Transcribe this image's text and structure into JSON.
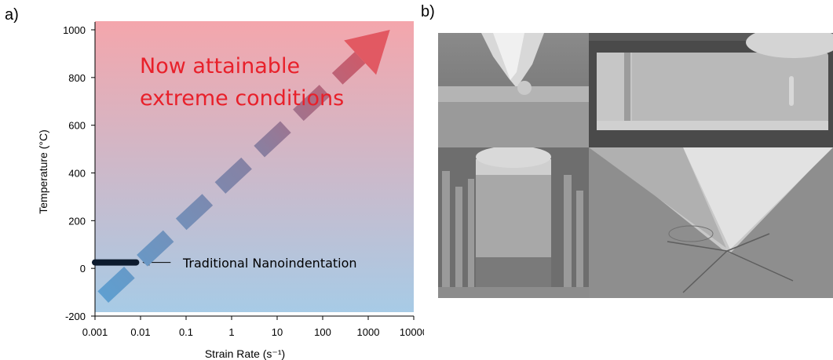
{
  "panel_labels": {
    "a": "a)",
    "b": "b)"
  },
  "chart_data": {
    "type": "line",
    "x_scale": "log",
    "xlabel": "Strain Rate (s⁻¹)",
    "ylabel": "Temperature (°C)",
    "xlim": [
      0.001,
      10000
    ],
    "ylim": [
      -200,
      1000
    ],
    "x_tick_labels": [
      "0.001",
      "0.01",
      "0.1",
      "1",
      "10",
      "100",
      "1000",
      "10000"
    ],
    "y_tick_labels": [
      "-200",
      "0",
      "200",
      "400",
      "600",
      "800",
      "1000"
    ],
    "grid": false,
    "background_gradient": {
      "top": "#f4a6ac",
      "bottom": "#a7cbe6"
    },
    "series": [
      {
        "name": "Traditional Nanoindentation",
        "style": "solid",
        "color": "#0d1b2e",
        "x": [
          0.001,
          0.008
        ],
        "y": [
          25,
          25
        ]
      },
      {
        "style": "dashed-arrow",
        "color_start": "#5f9fd0",
        "color_end": "#e0505a",
        "x": [
          0.0015,
          3000
        ],
        "y": [
          -120,
          1000
        ]
      }
    ],
    "annotations": [
      {
        "text": "Now attainable",
        "color": "#e8202a"
      },
      {
        "text": "extreme conditions",
        "color": "#e8202a"
      },
      {
        "text": "Traditional Nanoindentation",
        "color": "#000000"
      }
    ]
  },
  "images": [
    {
      "name": "sem-indenter-tip"
    },
    {
      "name": "sem-cantilever-beam"
    },
    {
      "name": "sem-micropillar"
    },
    {
      "name": "sem-indent-cracks"
    }
  ]
}
